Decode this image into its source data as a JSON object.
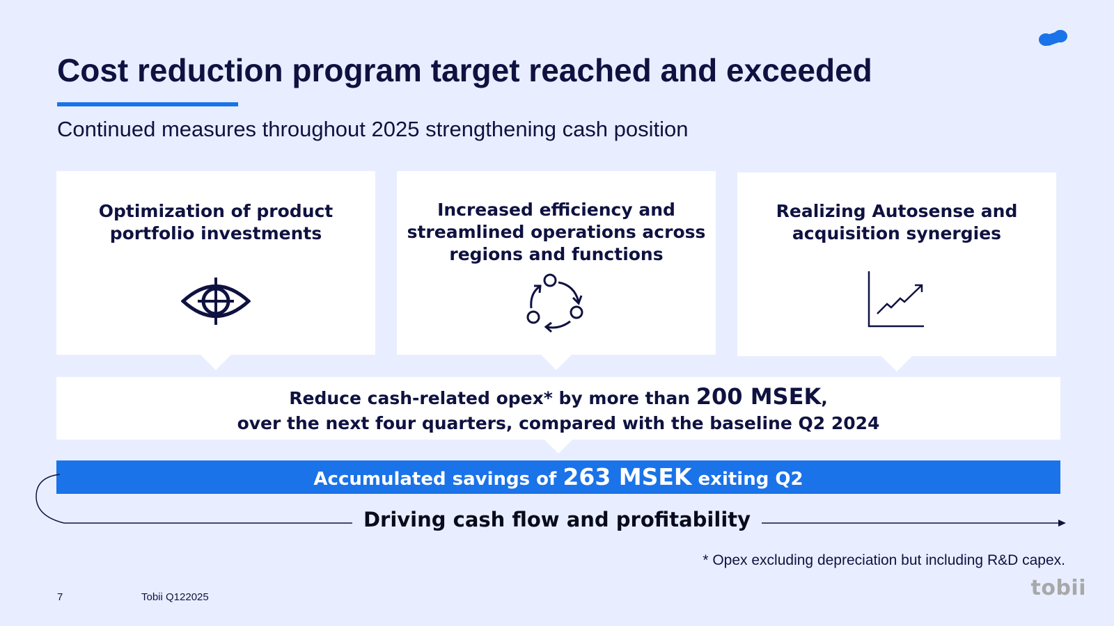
{
  "slide": {
    "title": "Cost reduction program target reached and exceeded",
    "subtitle": "Continued measures throughout 2025 strengthening cash position"
  },
  "cards": [
    {
      "title": "Optimization of product portfolio investments",
      "icon": "eye-target-icon"
    },
    {
      "title": "Increased efficiency and streamlined operations across regions and functions",
      "icon": "cycle-arrows-icon"
    },
    {
      "title": "Realizing Autosense and acquisition synergies",
      "icon": "growth-chart-icon"
    }
  ],
  "target": {
    "line1_pre": "Reduce cash-related opex* by more than ",
    "line1_value": "200 MSEK",
    "line1_post": ",",
    "line2": "over the next four quarters, compared with the baseline Q2 2024"
  },
  "savings": {
    "pre": "Accumulated savings of ",
    "value": "263 MSEK",
    "post": " exiting Q2"
  },
  "flow": {
    "label": "Driving cash flow and profitability"
  },
  "footnote": "* Opex excluding depreciation but including R&D capex.",
  "footer": {
    "page_number": "7",
    "document": "Tobii Q122025",
    "brand": "tobii"
  },
  "colors": {
    "background": "#e8eeff",
    "navy": "#0f1240",
    "accent_blue": "#1a73e8",
    "card": "#ffffff"
  }
}
